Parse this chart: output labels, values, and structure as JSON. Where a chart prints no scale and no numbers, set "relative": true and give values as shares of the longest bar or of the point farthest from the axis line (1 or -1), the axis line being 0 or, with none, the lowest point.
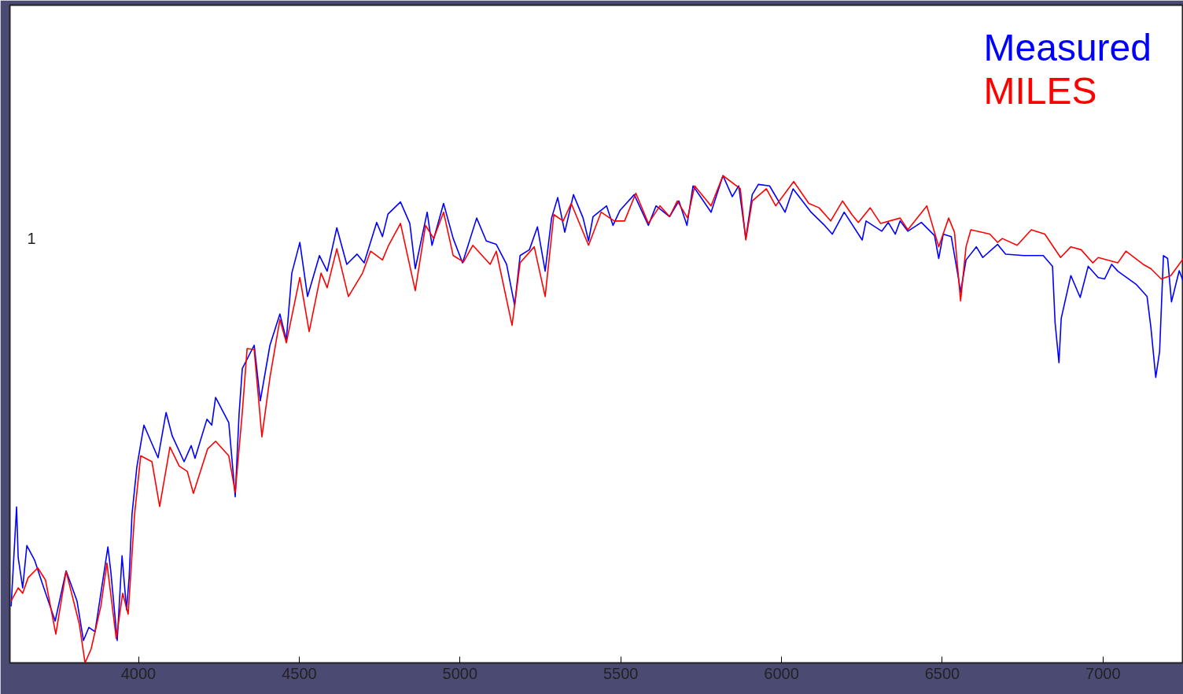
{
  "chart_data": {
    "type": "line",
    "relative": true,
    "xlim": [
      3600,
      7250
    ],
    "xticks": [
      4000,
      4500,
      5000,
      5500,
      6000,
      6500,
      7000
    ],
    "legend": "top right",
    "grid": false,
    "marker": "none",
    "line_style": "solid",
    "annotations": [
      "1"
    ],
    "series": [
      {
        "name": "Measured",
        "color": "#0000ff",
        "x": [
          3604,
          3621,
          3626,
          3640,
          3653,
          3677,
          3701,
          3741,
          3775,
          3809,
          3829,
          3846,
          3865,
          3905,
          3914,
          3934,
          3949,
          3963,
          3971,
          3980,
          3995,
          4017,
          4061,
          4086,
          4105,
          4142,
          4164,
          4176,
          4213,
          4228,
          4240,
          4281,
          4301,
          4313,
          4323,
          4360,
          4379,
          4409,
          4440,
          4460,
          4477,
          4502,
          4526,
          4563,
          4587,
          4617,
          4648,
          4680,
          4702,
          4741,
          4759,
          4776,
          4815,
          4844,
          4861,
          4898,
          4913,
          4949,
          4979,
          5008,
          5052,
          5082,
          5113,
          5145,
          5170,
          5187,
          5216,
          5241,
          5265,
          5285,
          5304,
          5326,
          5353,
          5383,
          5400,
          5414,
          5456,
          5476,
          5498,
          5542,
          5586,
          5610,
          5652,
          5681,
          5706,
          5725,
          5781,
          5818,
          5847,
          5867,
          5889,
          5909,
          5928,
          5963,
          6011,
          6036,
          6092,
          6134,
          6158,
          6195,
          6251,
          6263,
          6312,
          6332,
          6354,
          6369,
          6393,
          6435,
          6476,
          6489,
          6503,
          6528,
          6550,
          6557,
          6574,
          6606,
          6626,
          6672,
          6697,
          6753,
          6814,
          6843,
          6851,
          6863,
          6870,
          6900,
          6929,
          6954,
          6985,
          7005,
          7027,
          7046,
          7103,
          7137,
          7149,
          7164,
          7176,
          7188,
          7201,
          7213,
          7237,
          7250
        ],
        "values": [
          0.116,
          0.32,
          0.216,
          0.154,
          0.241,
          0.211,
          0.163,
          0.086,
          0.189,
          0.127,
          0.046,
          0.073,
          0.064,
          0.238,
          0.188,
          0.046,
          0.22,
          0.109,
          0.175,
          0.305,
          0.402,
          0.488,
          0.421,
          0.514,
          0.466,
          0.413,
          0.446,
          0.42,
          0.5,
          0.488,
          0.545,
          0.493,
          0.341,
          0.511,
          0.604,
          0.652,
          0.538,
          0.652,
          0.716,
          0.663,
          0.8,
          0.863,
          0.752,
          0.836,
          0.804,
          0.893,
          0.818,
          0.839,
          0.821,
          0.904,
          0.875,
          0.921,
          0.946,
          0.902,
          0.809,
          0.925,
          0.857,
          0.943,
          0.871,
          0.821,
          0.913,
          0.866,
          0.859,
          0.818,
          0.734,
          0.836,
          0.848,
          0.895,
          0.804,
          0.913,
          0.955,
          0.884,
          0.961,
          0.913,
          0.866,
          0.916,
          0.938,
          0.898,
          0.929,
          0.961,
          0.898,
          0.938,
          0.916,
          0.948,
          0.898,
          0.979,
          0.925,
          1.0,
          0.957,
          0.979,
          0.871,
          0.961,
          0.982,
          0.979,
          0.925,
          0.973,
          0.925,
          0.898,
          0.88,
          0.925,
          0.868,
          0.907,
          0.886,
          0.904,
          0.88,
          0.907,
          0.886,
          0.904,
          0.877,
          0.83,
          0.88,
          0.875,
          0.791,
          0.761,
          0.827,
          0.854,
          0.832,
          0.859,
          0.839,
          0.836,
          0.836,
          0.814,
          0.698,
          0.616,
          0.707,
          0.795,
          0.75,
          0.814,
          0.791,
          0.788,
          0.818,
          0.804,
          0.777,
          0.752,
          0.688,
          0.586,
          0.639,
          0.836,
          0.83,
          0.741,
          0.805,
          0.782
        ]
      },
      {
        "name": "MILES",
        "color": "#ff0000",
        "x": [
          3604,
          3626,
          3640,
          3657,
          3687,
          3711,
          3743,
          3775,
          3816,
          3834,
          3853,
          3883,
          3902,
          3931,
          3951,
          3968,
          3988,
          4007,
          4042,
          4066,
          4098,
          4127,
          4152,
          4171,
          4215,
          4240,
          4281,
          4301,
          4323,
          4338,
          4360,
          4384,
          4409,
          4440,
          4460,
          4502,
          4531,
          4568,
          4587,
          4617,
          4653,
          4697,
          4722,
          4759,
          4778,
          4815,
          4861,
          4893,
          4918,
          4949,
          4979,
          5011,
          5040,
          5094,
          5113,
          5162,
          5187,
          5231,
          5265,
          5292,
          5321,
          5346,
          5400,
          5439,
          5480,
          5512,
          5547,
          5586,
          5622,
          5652,
          5676,
          5708,
          5730,
          5781,
          5818,
          5872,
          5889,
          5909,
          5953,
          5982,
          6038,
          6085,
          6117,
          6153,
          6190,
          6219,
          6239,
          6276,
          6308,
          6369,
          6393,
          6452,
          6489,
          6520,
          6538,
          6557,
          6574,
          6589,
          6648,
          6672,
          6687,
          6733,
          6777,
          6819,
          6868,
          6900,
          6932,
          6968,
          6985,
          7046,
          7071,
          7125,
          7149,
          7181,
          7211,
          7250
        ],
        "values": [
          0.127,
          0.154,
          0.143,
          0.175,
          0.195,
          0.17,
          0.059,
          0.188,
          0.08,
          0.0,
          0.029,
          0.116,
          0.205,
          0.05,
          0.143,
          0.1,
          0.305,
          0.425,
          0.413,
          0.321,
          0.443,
          0.404,
          0.393,
          0.348,
          0.439,
          0.455,
          0.425,
          0.35,
          0.514,
          0.645,
          0.643,
          0.464,
          0.586,
          0.705,
          0.657,
          0.791,
          0.68,
          0.8,
          0.77,
          0.85,
          0.752,
          0.8,
          0.845,
          0.827,
          0.857,
          0.902,
          0.764,
          0.898,
          0.871,
          0.925,
          0.836,
          0.823,
          0.857,
          0.818,
          0.845,
          0.693,
          0.821,
          0.854,
          0.752,
          0.92,
          0.907,
          0.943,
          0.857,
          0.925,
          0.907,
          0.907,
          0.964,
          0.902,
          0.938,
          0.916,
          0.948,
          0.913,
          0.979,
          0.938,
          1.0,
          0.973,
          0.868,
          0.948,
          0.973,
          0.938,
          0.988,
          0.943,
          0.934,
          0.907,
          0.948,
          0.92,
          0.904,
          0.934,
          0.902,
          0.913,
          0.889,
          0.938,
          0.854,
          0.913,
          0.884,
          0.743,
          0.854,
          0.889,
          0.88,
          0.863,
          0.871,
          0.857,
          0.889,
          0.88,
          0.832,
          0.854,
          0.848,
          0.821,
          0.832,
          0.821,
          0.845,
          0.818,
          0.809,
          0.788,
          0.795,
          0.83
        ]
      }
    ]
  }
}
